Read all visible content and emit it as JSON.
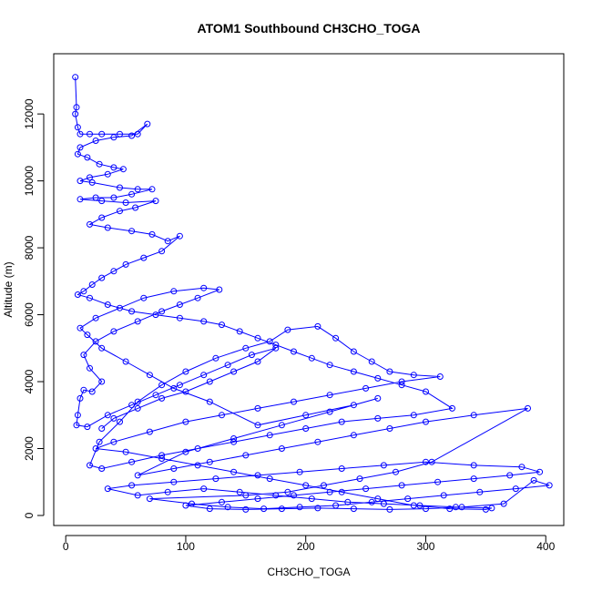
{
  "chart_data": {
    "type": "scatter",
    "title": "ATOM1 Southbound CH3CHO_TOGA",
    "xlabel": "CH3CHO_TOGA",
    "ylabel": "Altitude (m)",
    "xlim": [
      -10,
      415
    ],
    "ylim": [
      -300,
      13800
    ],
    "x_ticks": [
      0,
      100,
      200,
      300,
      400
    ],
    "y_ticks": [
      0,
      2000,
      4000,
      6000,
      8000,
      10000,
      12000
    ],
    "x_tick_labels": [
      "0",
      "100",
      "200",
      "300",
      "400"
    ],
    "y_tick_labels": [
      "0",
      "2000",
      "4000",
      "6000",
      "8000",
      "10000",
      "12000"
    ],
    "grid": false,
    "legend": "none",
    "series_style": {
      "color": "#0000ff",
      "marker": "open-circle",
      "connected": true
    },
    "series": [
      {
        "values": [
          [
            8,
            13100
          ],
          [
            9,
            12200
          ],
          [
            8,
            12000
          ],
          [
            10,
            11600
          ],
          [
            12,
            11400
          ],
          [
            20,
            11400
          ],
          [
            30,
            11400
          ],
          [
            45,
            11400
          ],
          [
            60,
            11400
          ],
          [
            68,
            11700
          ],
          [
            55,
            11350
          ],
          [
            40,
            11300
          ],
          [
            25,
            11200
          ],
          [
            12,
            11000
          ],
          [
            10,
            10800
          ],
          [
            18,
            10700
          ],
          [
            28,
            10500
          ],
          [
            40,
            10400
          ],
          [
            48,
            10350
          ],
          [
            35,
            10200
          ],
          [
            20,
            10100
          ],
          [
            12,
            10000
          ],
          [
            22,
            9950
          ],
          [
            45,
            9800
          ],
          [
            60,
            9750
          ],
          [
            72,
            9750
          ],
          [
            55,
            9600
          ],
          [
            40,
            9500
          ],
          [
            25,
            9500
          ],
          [
            12,
            9450
          ],
          [
            30,
            9400
          ],
          [
            50,
            9350
          ],
          [
            75,
            9400
          ],
          [
            58,
            9200
          ],
          [
            45,
            9100
          ],
          [
            30,
            8900
          ],
          [
            20,
            8700
          ],
          [
            35,
            8600
          ],
          [
            55,
            8500
          ],
          [
            72,
            8400
          ],
          [
            85,
            8200
          ],
          [
            95,
            8350
          ],
          [
            80,
            7900
          ],
          [
            65,
            7700
          ],
          [
            50,
            7500
          ],
          [
            40,
            7300
          ],
          [
            30,
            7100
          ],
          [
            22,
            6900
          ],
          [
            15,
            6700
          ],
          [
            10,
            6600
          ],
          [
            20,
            6500
          ],
          [
            35,
            6300
          ],
          [
            55,
            6100
          ],
          [
            75,
            6000
          ],
          [
            95,
            5900
          ],
          [
            115,
            5800
          ],
          [
            130,
            5700
          ],
          [
            145,
            5500
          ],
          [
            160,
            5300
          ],
          [
            175,
            5100
          ],
          [
            190,
            4900
          ],
          [
            205,
            4700
          ],
          [
            220,
            4500
          ],
          [
            240,
            4300
          ],
          [
            260,
            4100
          ],
          [
            280,
            3900
          ],
          [
            300,
            3700
          ],
          [
            322,
            3200
          ],
          [
            290,
            3000
          ],
          [
            260,
            2900
          ],
          [
            230,
            2800
          ],
          [
            200,
            2600
          ],
          [
            170,
            2400
          ],
          [
            140,
            2200
          ],
          [
            110,
            2000
          ],
          [
            80,
            1800
          ],
          [
            55,
            1600
          ],
          [
            30,
            1400
          ],
          [
            20,
            1500
          ],
          [
            28,
            2200
          ],
          [
            45,
            2800
          ],
          [
            60,
            3400
          ],
          [
            80,
            3900
          ],
          [
            100,
            4300
          ],
          [
            125,
            4700
          ],
          [
            150,
            5000
          ],
          [
            170,
            5200
          ],
          [
            185,
            5550
          ],
          [
            210,
            5650
          ],
          [
            225,
            5300
          ],
          [
            240,
            4900
          ],
          [
            255,
            4600
          ],
          [
            270,
            4300
          ],
          [
            290,
            4200
          ],
          [
            312,
            4150
          ],
          [
            280,
            4000
          ],
          [
            250,
            3800
          ],
          [
            220,
            3600
          ],
          [
            190,
            3400
          ],
          [
            160,
            3200
          ],
          [
            130,
            3000
          ],
          [
            100,
            2800
          ],
          [
            70,
            2500
          ],
          [
            40,
            2200
          ],
          [
            25,
            2000
          ],
          [
            50,
            1900
          ],
          [
            80,
            1700
          ],
          [
            110,
            1500
          ],
          [
            140,
            1300
          ],
          [
            170,
            1100
          ],
          [
            200,
            900
          ],
          [
            230,
            700
          ],
          [
            260,
            500
          ],
          [
            290,
            300
          ],
          [
            320,
            200
          ],
          [
            350,
            180
          ],
          [
            355,
            220
          ],
          [
            325,
            250
          ],
          [
            295,
            300
          ],
          [
            265,
            350
          ],
          [
            235,
            400
          ],
          [
            205,
            500
          ],
          [
            175,
            600
          ],
          [
            145,
            700
          ],
          [
            115,
            800
          ],
          [
            85,
            700
          ],
          [
            60,
            600
          ],
          [
            35,
            800
          ],
          [
            55,
            900
          ],
          [
            90,
            1000
          ],
          [
            125,
            1100
          ],
          [
            160,
            1200
          ],
          [
            195,
            1300
          ],
          [
            230,
            1400
          ],
          [
            265,
            1500
          ],
          [
            300,
            1600
          ],
          [
            340,
            1500
          ],
          [
            380,
            1450
          ],
          [
            395,
            1300
          ],
          [
            370,
            1200
          ],
          [
            340,
            1100
          ],
          [
            310,
            1000
          ],
          [
            280,
            900
          ],
          [
            250,
            800
          ],
          [
            220,
            700
          ],
          [
            190,
            600
          ],
          [
            160,
            500
          ],
          [
            130,
            400
          ],
          [
            100,
            300
          ],
          [
            120,
            200
          ],
          [
            150,
            180
          ],
          [
            180,
            200
          ],
          [
            210,
            220
          ],
          [
            240,
            200
          ],
          [
            270,
            180
          ],
          [
            300,
            200
          ],
          [
            330,
            250
          ],
          [
            365,
            350
          ],
          [
            390,
            1050
          ],
          [
            403,
            900
          ],
          [
            375,
            800
          ],
          [
            345,
            700
          ],
          [
            315,
            600
          ],
          [
            285,
            500
          ],
          [
            255,
            400
          ],
          [
            225,
            300
          ],
          [
            195,
            250
          ],
          [
            165,
            200
          ],
          [
            135,
            250
          ],
          [
            105,
            350
          ],
          [
            70,
            500
          ],
          [
            150,
            600
          ],
          [
            185,
            700
          ],
          [
            215,
            900
          ],
          [
            245,
            1100
          ],
          [
            275,
            1300
          ],
          [
            305,
            1600
          ],
          [
            385,
            3200
          ],
          [
            340,
            3000
          ],
          [
            300,
            2800
          ],
          [
            270,
            2600
          ],
          [
            240,
            2400
          ],
          [
            210,
            2200
          ],
          [
            180,
            2000
          ],
          [
            150,
            1800
          ],
          [
            120,
            1600
          ],
          [
            90,
            1400
          ],
          [
            60,
            1200
          ],
          [
            100,
            1900
          ],
          [
            140,
            2300
          ],
          [
            180,
            2700
          ],
          [
            220,
            3100
          ],
          [
            260,
            3500
          ],
          [
            240,
            3300
          ],
          [
            200,
            3000
          ],
          [
            160,
            2700
          ],
          [
            120,
            3400
          ],
          [
            90,
            3800
          ],
          [
            70,
            4200
          ],
          [
            50,
            4600
          ],
          [
            30,
            5000
          ],
          [
            18,
            5400
          ],
          [
            12,
            5600
          ],
          [
            25,
            5900
          ],
          [
            45,
            6200
          ],
          [
            65,
            6500
          ],
          [
            90,
            6700
          ],
          [
            115,
            6800
          ],
          [
            128,
            6750
          ],
          [
            110,
            6500
          ],
          [
            95,
            6300
          ],
          [
            80,
            6100
          ],
          [
            60,
            5800
          ],
          [
            40,
            5500
          ],
          [
            25,
            5200
          ],
          [
            15,
            4800
          ],
          [
            20,
            4400
          ],
          [
            30,
            4000
          ],
          [
            22,
            3700
          ],
          [
            15,
            3750
          ],
          [
            12,
            3500
          ],
          [
            10,
            3000
          ],
          [
            9,
            2700
          ],
          [
            18,
            2650
          ],
          [
            35,
            3000
          ],
          [
            55,
            3300
          ],
          [
            75,
            3600
          ],
          [
            95,
            3900
          ],
          [
            115,
            4200
          ],
          [
            135,
            4500
          ],
          [
            155,
            4800
          ],
          [
            175,
            5000
          ],
          [
            160,
            4600
          ],
          [
            140,
            4300
          ],
          [
            120,
            4000
          ],
          [
            100,
            3700
          ],
          [
            80,
            3500
          ],
          [
            60,
            3200
          ],
          [
            40,
            2900
          ],
          [
            30,
            2600
          ]
        ]
      }
    ]
  }
}
